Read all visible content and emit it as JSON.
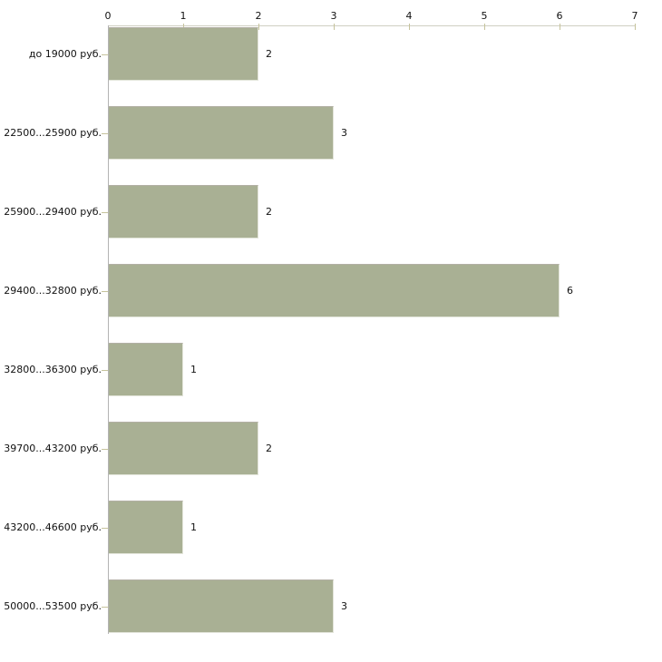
{
  "chart_data": {
    "type": "bar",
    "orientation": "horizontal",
    "title": "",
    "xlabel": "",
    "ylabel": "",
    "categories": [
      "до 19000 руб.",
      "22500...25900 руб.",
      "25900...29400 руб.",
      "29400...32800 руб.",
      "32800...36300 руб.",
      "39700...43200 руб.",
      "43200...46600 руб.",
      "50000...53500 руб."
    ],
    "values": [
      2,
      3,
      2,
      6,
      1,
      2,
      1,
      3
    ],
    "value_labels": [
      "2",
      "3",
      "2",
      "6",
      "1",
      "2",
      "1",
      "3"
    ],
    "xlim": [
      0,
      7
    ],
    "x_ticks": [
      "0",
      "1",
      "2",
      "3",
      "4",
      "5",
      "6",
      "7"
    ],
    "grid": false,
    "legend": null,
    "axis_position": "top",
    "colors": {
      "bar_fill": "#a9b094",
      "bar_border_dark": "#b3b0a5",
      "bar_border_light": "#e2e4d9",
      "horizontal_axis": "#cfcfc2",
      "vertical_axis": "#b3b3b3",
      "tick": "#c6c39c",
      "text": "#111111",
      "background": "#ffffff"
    }
  }
}
